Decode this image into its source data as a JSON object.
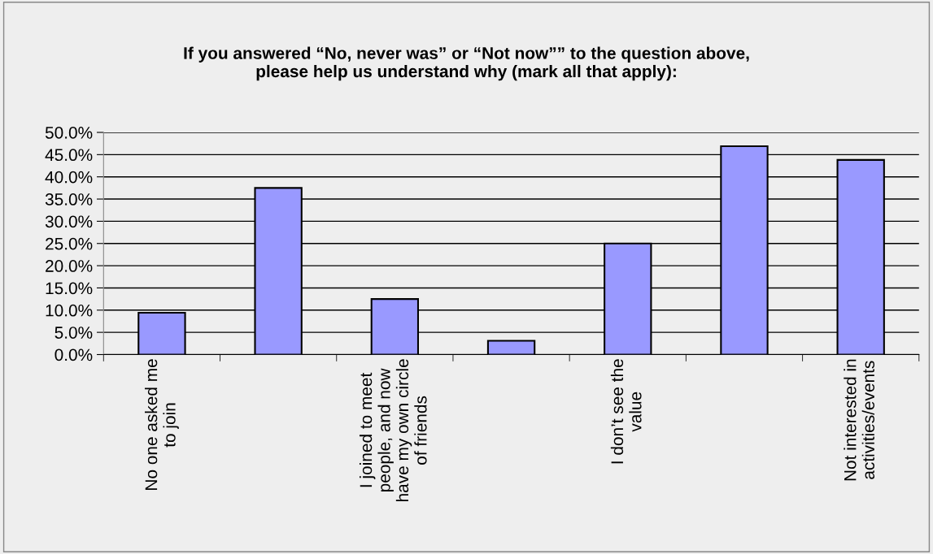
{
  "chart_data": {
    "type": "bar",
    "title": "If you answered “No, never was” or “Not now”” to the question above,\nplease help us understand why (mark all that apply):",
    "categories": [
      "No one asked me\nto join",
      null,
      "I joined to meet\npeople, and now\nhave my own circle\nof friends",
      null,
      "I don’t see the\nvalue",
      null,
      "Not interested in\nactivities/events"
    ],
    "values": [
      9.4,
      37.5,
      12.5,
      3.1,
      25.0,
      46.9,
      43.8
    ],
    "color": "#9999ff",
    "ylim": [
      0,
      50
    ],
    "yticks": [
      {
        "value": 0,
        "label": "0.0%"
      },
      {
        "value": 5,
        "label": "5.0%"
      },
      {
        "value": 10,
        "label": "10.0%"
      },
      {
        "value": 15,
        "label": "15.0%"
      },
      {
        "value": 20,
        "label": "20.0%"
      },
      {
        "value": 25,
        "label": "25.0%"
      },
      {
        "value": 30,
        "label": "30.0%"
      },
      {
        "value": 35,
        "label": "35.0%"
      },
      {
        "value": 40,
        "label": "40.0%"
      },
      {
        "value": 45,
        "label": "45.0%"
      },
      {
        "value": 50,
        "label": "50.0%"
      }
    ],
    "grid": "y",
    "legend": false
  }
}
